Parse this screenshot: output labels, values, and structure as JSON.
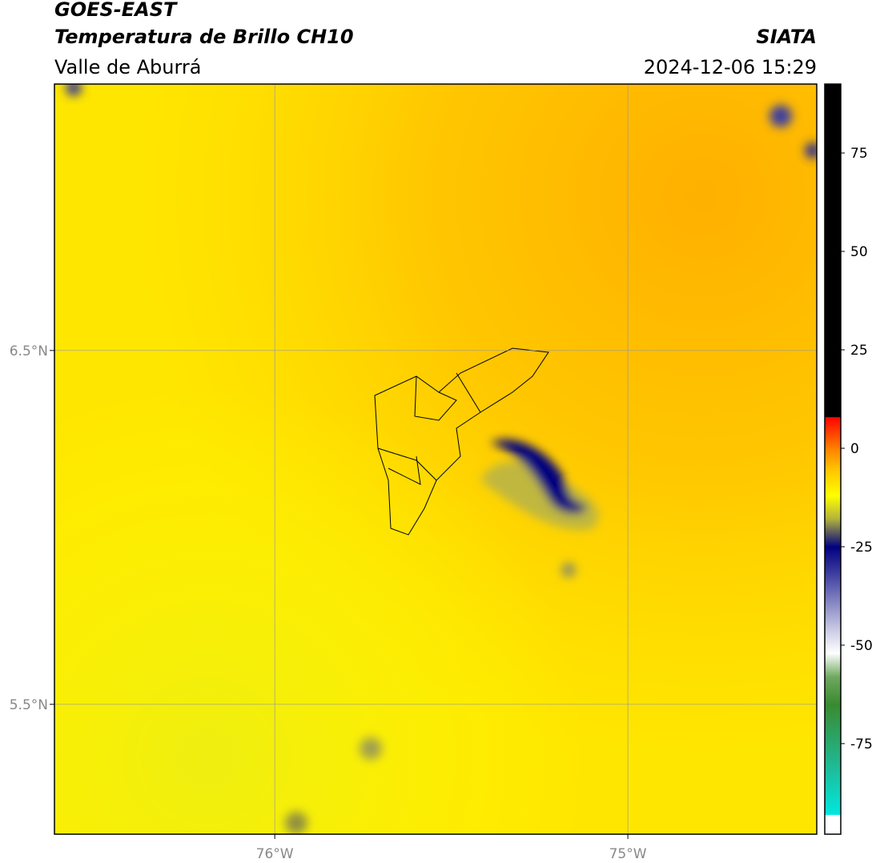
{
  "header": {
    "title": "GOES-EAST",
    "subtitle": "Temperatura de Brillo CH10",
    "region": "Valle de Aburrá",
    "source": "SIATA",
    "datetime": "2024-12-06 15:29"
  },
  "map": {
    "xlim": [
      -76.624,
      -74.465
    ],
    "ylim": [
      5.133,
      7.253
    ],
    "xticks": [
      {
        "value": -76,
        "label": "76°W"
      },
      {
        "value": -75,
        "label": "75°W"
      }
    ],
    "yticks": [
      {
        "value": 6.5,
        "label": "6.5°N"
      },
      {
        "value": 5.5,
        "label": "5.5°N"
      }
    ]
  },
  "colorbar": {
    "range": [
      -98,
      92.5
    ],
    "ticks": [
      75,
      50,
      25,
      0,
      -25,
      -50,
      -75
    ],
    "stops": [
      {
        "value": -98,
        "color": "#ffffff"
      },
      {
        "value": -93,
        "color": "#ffffff"
      },
      {
        "value": -93,
        "color": "#00e8e0"
      },
      {
        "value": -80,
        "color": "#20b890"
      },
      {
        "value": -65,
        "color": "#3a8a30"
      },
      {
        "value": -58,
        "color": "#70a860"
      },
      {
        "value": -52,
        "color": "#ffffff"
      },
      {
        "value": -45,
        "color": "#c0c0e0"
      },
      {
        "value": -32,
        "color": "#4040a0"
      },
      {
        "value": -25,
        "color": "#000080"
      },
      {
        "value": -18,
        "color": "#b0b040"
      },
      {
        "value": -12,
        "color": "#ffff00"
      },
      {
        "value": -5,
        "color": "#ffc000"
      },
      {
        "value": 0,
        "color": "#ff8000"
      },
      {
        "value": 8,
        "color": "#ff0000"
      },
      {
        "value": 8,
        "color": "#000000"
      },
      {
        "value": 92.5,
        "color": "#000000"
      }
    ]
  }
}
